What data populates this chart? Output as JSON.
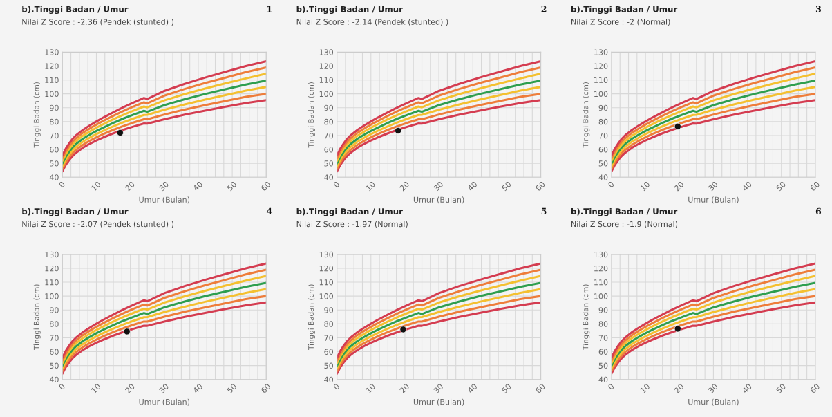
{
  "chart_data": [
    {
      "type": "line",
      "title": "b).Tinggi Badan / Umur",
      "subtitle": "Nilai Z Score : -2.36 (Pendek (stunted) )",
      "annotations": [
        "1"
      ],
      "xlabel": "Umur (Bulan)",
      "ylabel": "Tinggi Badan (cm)",
      "xlim": [
        0,
        60
      ],
      "ylim": [
        40,
        130
      ],
      "xticks": [
        0,
        {
          "value": 2.5,
          "label": null
        },
        {
          "value": 5,
          "label": null
        },
        {
          "value": 7.5,
          "label": null
        },
        10,
        {
          "value": 12.5,
          "label": null
        },
        {
          "value": 15,
          "label": null
        },
        {
          "value": 17.5,
          "label": null
        },
        20,
        {
          "value": 22.5,
          "label": null
        },
        {
          "value": 25,
          "label": null
        },
        {
          "value": 27.5,
          "label": null
        },
        30,
        {
          "value": 32.5,
          "label": null
        },
        {
          "value": 35,
          "label": null
        },
        {
          "value": 37.5,
          "label": null
        },
        40,
        {
          "value": 42.5,
          "label": null
        },
        {
          "value": 45,
          "label": null
        },
        {
          "value": 47.5,
          "label": null
        },
        50,
        {
          "value": 52.5,
          "label": null
        },
        {
          "value": 55,
          "label": null
        },
        {
          "value": 57.5,
          "label": null
        },
        60
      ],
      "yticks": [
        40,
        50,
        60,
        70,
        80,
        90,
        100,
        110,
        120,
        130
      ],
      "grid": true,
      "line_style": "solid",
      "x": [
        0,
        1,
        2,
        3,
        4,
        6,
        8,
        10,
        12,
        15,
        18,
        21,
        24,
        25,
        30,
        36,
        42,
        48,
        54,
        60
      ],
      "series": [
        {
          "color": "#d43c50",
          "values": [
            44.2,
            48.9,
            52.4,
            55.3,
            57.6,
            61.2,
            64.0,
            66.4,
            68.6,
            71.6,
            74.2,
            76.5,
            78.7,
            78.6,
            81.7,
            85.0,
            87.9,
            90.7,
            93.4,
            95.5
          ]
        },
        {
          "color": "#ee7d3a",
          "values": [
            46.1,
            50.8,
            54.4,
            57.3,
            59.7,
            63.3,
            66.2,
            68.7,
            71.0,
            74.1,
            76.9,
            79.4,
            81.7,
            81.7,
            85.1,
            88.7,
            91.9,
            94.9,
            97.8,
            100
          ]
        },
        {
          "color": "#f4c030",
          "values": [
            48.0,
            52.8,
            56.4,
            59.4,
            61.8,
            65.5,
            68.4,
            71.0,
            73.4,
            76.6,
            79.6,
            82.3,
            84.8,
            84.9,
            88.5,
            92.4,
            95.9,
            99.1,
            102.3,
            105
          ]
        },
        {
          "color": "#2e9e4f",
          "values": [
            49.9,
            54.7,
            58.4,
            61.4,
            63.9,
            67.6,
            70.6,
            73.3,
            75.7,
            79.1,
            82.3,
            85.1,
            87.8,
            87.1,
            91.9,
            96.1,
            99.9,
            103.3,
            106.7,
            109.5
          ]
        },
        {
          "color": "#f4c030",
          "values": [
            51.8,
            56.7,
            60.4,
            63.5,
            66.0,
            69.8,
            72.8,
            75.6,
            78.1,
            81.7,
            85.0,
            88.0,
            90.9,
            90.3,
            95.3,
            99.8,
            103.8,
            107.5,
            111.1,
            114.5
          ]
        },
        {
          "color": "#ee7d3a",
          "values": [
            53.7,
            58.6,
            62.4,
            65.5,
            68.0,
            71.9,
            75.0,
            77.9,
            80.5,
            84.2,
            87.7,
            90.9,
            93.9,
            93.2,
            98.7,
            103.5,
            107.8,
            111.7,
            115.6,
            119
          ]
        },
        {
          "color": "#d43c50",
          "values": [
            55.6,
            60.6,
            64.4,
            67.6,
            70.1,
            74.0,
            77.2,
            80.1,
            82.9,
            86.7,
            90.4,
            93.8,
            97.0,
            96.3,
            102.1,
            107.2,
            111.7,
            115.9,
            120.0,
            123.5
          ]
        },
        {
          "type": "scatter",
          "color": "#111111",
          "x": [
            17
          ],
          "values": [
            72
          ]
        }
      ]
    },
    {
      "type": "line",
      "title": "b).Tinggi Badan / Umur",
      "subtitle": "Nilai Z Score : -2.14 (Pendek (stunted) )",
      "annotations": [
        "2"
      ],
      "xlabel": "Umur (Bulan)",
      "ylabel": "Tinggi Badan (cm)",
      "xlim": [
        0,
        60
      ],
      "ylim": [
        40,
        130
      ],
      "xticks": [
        0,
        {
          "value": 2.5,
          "label": null
        },
        {
          "value": 5,
          "label": null
        },
        {
          "value": 7.5,
          "label": null
        },
        10,
        {
          "value": 12.5,
          "label": null
        },
        {
          "value": 15,
          "label": null
        },
        {
          "value": 17.5,
          "label": null
        },
        20,
        {
          "value": 22.5,
          "label": null
        },
        {
          "value": 25,
          "label": null
        },
        {
          "value": 27.5,
          "label": null
        },
        30,
        {
          "value": 32.5,
          "label": null
        },
        {
          "value": 35,
          "label": null
        },
        {
          "value": 37.5,
          "label": null
        },
        40,
        {
          "value": 42.5,
          "label": null
        },
        {
          "value": 45,
          "label": null
        },
        {
          "value": 47.5,
          "label": null
        },
        50,
        {
          "value": 52.5,
          "label": null
        },
        {
          "value": 55,
          "label": null
        },
        {
          "value": 57.5,
          "label": null
        },
        60
      ],
      "yticks": [
        40,
        50,
        60,
        70,
        80,
        90,
        100,
        110,
        120,
        130
      ],
      "grid": true,
      "line_style": "solid",
      "x": [
        0,
        1,
        2,
        3,
        4,
        6,
        8,
        10,
        12,
        15,
        18,
        21,
        24,
        25,
        30,
        36,
        42,
        48,
        54,
        60
      ],
      "series": [
        {
          "color": "#d43c50",
          "values": [
            44.2,
            48.9,
            52.4,
            55.3,
            57.6,
            61.2,
            64.0,
            66.4,
            68.6,
            71.6,
            74.2,
            76.5,
            78.7,
            78.6,
            81.7,
            85.0,
            87.9,
            90.7,
            93.4,
            95.5
          ]
        },
        {
          "color": "#ee7d3a",
          "values": [
            46.1,
            50.8,
            54.4,
            57.3,
            59.7,
            63.3,
            66.2,
            68.7,
            71.0,
            74.1,
            76.9,
            79.4,
            81.7,
            81.7,
            85.1,
            88.7,
            91.9,
            94.9,
            97.8,
            100
          ]
        },
        {
          "color": "#f4c030",
          "values": [
            48.0,
            52.8,
            56.4,
            59.4,
            61.8,
            65.5,
            68.4,
            71.0,
            73.4,
            76.6,
            79.6,
            82.3,
            84.8,
            84.9,
            88.5,
            92.4,
            95.9,
            99.1,
            102.3,
            105
          ]
        },
        {
          "color": "#2e9e4f",
          "values": [
            49.9,
            54.7,
            58.4,
            61.4,
            63.9,
            67.6,
            70.6,
            73.3,
            75.7,
            79.1,
            82.3,
            85.1,
            87.8,
            87.1,
            91.9,
            96.1,
            99.9,
            103.3,
            106.7,
            109.5
          ]
        },
        {
          "color": "#f4c030",
          "values": [
            51.8,
            56.7,
            60.4,
            63.5,
            66.0,
            69.8,
            72.8,
            75.6,
            78.1,
            81.7,
            85.0,
            88.0,
            90.9,
            90.3,
            95.3,
            99.8,
            103.8,
            107.5,
            111.1,
            114.5
          ]
        },
        {
          "color": "#ee7d3a",
          "values": [
            53.7,
            58.6,
            62.4,
            65.5,
            68.0,
            71.9,
            75.0,
            77.9,
            80.5,
            84.2,
            87.7,
            90.9,
            93.9,
            93.2,
            98.7,
            103.5,
            107.8,
            111.7,
            115.6,
            119
          ]
        },
        {
          "color": "#d43c50",
          "values": [
            55.6,
            60.6,
            64.4,
            67.6,
            70.1,
            74.0,
            77.2,
            80.1,
            82.9,
            86.7,
            90.4,
            93.8,
            97.0,
            96.3,
            102.1,
            107.2,
            111.7,
            115.9,
            120.0,
            123.5
          ]
        },
        {
          "type": "scatter",
          "color": "#111111",
          "x": [
            18
          ],
          "values": [
            73.5
          ]
        }
      ]
    },
    {
      "type": "line",
      "title": "b).Tinggi Badan / Umur",
      "subtitle": "Nilai Z Score : -2 (Normal)",
      "annotations": [
        "3"
      ],
      "xlabel": "Umur (Bulan)",
      "ylabel": "Tinggi Badan (cm)",
      "xlim": [
        0,
        60
      ],
      "ylim": [
        40,
        130
      ],
      "xticks": [
        0,
        {
          "value": 2.5,
          "label": null
        },
        {
          "value": 5,
          "label": null
        },
        {
          "value": 7.5,
          "label": null
        },
        10,
        {
          "value": 12.5,
          "label": null
        },
        {
          "value": 15,
          "label": null
        },
        {
          "value": 17.5,
          "label": null
        },
        20,
        {
          "value": 22.5,
          "label": null
        },
        {
          "value": 25,
          "label": null
        },
        {
          "value": 27.5,
          "label": null
        },
        30,
        {
          "value": 32.5,
          "label": null
        },
        {
          "value": 35,
          "label": null
        },
        {
          "value": 37.5,
          "label": null
        },
        40,
        {
          "value": 42.5,
          "label": null
        },
        {
          "value": 45,
          "label": null
        },
        {
          "value": 47.5,
          "label": null
        },
        50,
        {
          "value": 52.5,
          "label": null
        },
        {
          "value": 55,
          "label": null
        },
        {
          "value": 57.5,
          "label": null
        },
        60
      ],
      "yticks": [
        40,
        50,
        60,
        70,
        80,
        90,
        100,
        110,
        120,
        130
      ],
      "grid": true,
      "line_style": "solid",
      "x": [
        0,
        1,
        2,
        3,
        4,
        6,
        8,
        10,
        12,
        15,
        18,
        21,
        24,
        25,
        30,
        36,
        42,
        48,
        54,
        60
      ],
      "series": [
        {
          "color": "#d43c50",
          "values": [
            44.2,
            48.9,
            52.4,
            55.3,
            57.6,
            61.2,
            64.0,
            66.4,
            68.6,
            71.6,
            74.2,
            76.5,
            78.7,
            78.6,
            81.7,
            85.0,
            87.9,
            90.7,
            93.4,
            95.5
          ]
        },
        {
          "color": "#ee7d3a",
          "values": [
            46.1,
            50.8,
            54.4,
            57.3,
            59.7,
            63.3,
            66.2,
            68.7,
            71.0,
            74.1,
            76.9,
            79.4,
            81.7,
            81.7,
            85.1,
            88.7,
            91.9,
            94.9,
            97.8,
            100
          ]
        },
        {
          "color": "#f4c030",
          "values": [
            48.0,
            52.8,
            56.4,
            59.4,
            61.8,
            65.5,
            68.4,
            71.0,
            73.4,
            76.6,
            79.6,
            82.3,
            84.8,
            84.9,
            88.5,
            92.4,
            95.9,
            99.1,
            102.3,
            105
          ]
        },
        {
          "color": "#2e9e4f",
          "values": [
            49.9,
            54.7,
            58.4,
            61.4,
            63.9,
            67.6,
            70.6,
            73.3,
            75.7,
            79.1,
            82.3,
            85.1,
            87.8,
            87.1,
            91.9,
            96.1,
            99.9,
            103.3,
            106.7,
            109.5
          ]
        },
        {
          "color": "#f4c030",
          "values": [
            51.8,
            56.7,
            60.4,
            63.5,
            66.0,
            69.8,
            72.8,
            75.6,
            78.1,
            81.7,
            85.0,
            88.0,
            90.9,
            90.3,
            95.3,
            99.8,
            103.8,
            107.5,
            111.1,
            114.5
          ]
        },
        {
          "color": "#ee7d3a",
          "values": [
            53.7,
            58.6,
            62.4,
            65.5,
            68.0,
            71.9,
            75.0,
            77.9,
            80.5,
            84.2,
            87.7,
            90.9,
            93.9,
            93.2,
            98.7,
            103.5,
            107.8,
            111.7,
            115.6,
            119
          ]
        },
        {
          "color": "#d43c50",
          "values": [
            55.6,
            60.6,
            64.4,
            67.6,
            70.1,
            74.0,
            77.2,
            80.1,
            82.9,
            86.7,
            90.4,
            93.8,
            97.0,
            96.3,
            102.1,
            107.2,
            111.7,
            115.9,
            120.0,
            123.5
          ]
        },
        {
          "type": "scatter",
          "color": "#111111",
          "x": [
            19.5
          ],
          "values": [
            76.5
          ]
        }
      ]
    },
    {
      "type": "line",
      "title": "b).Tinggi Badan / Umur",
      "subtitle": "Nilai Z Score : -2.07 (Pendek (stunted) )",
      "annotations": [
        "4"
      ],
      "xlabel": "Umur (Bulan)",
      "ylabel": "Tinggi Badan (cm)",
      "xlim": [
        0,
        60
      ],
      "ylim": [
        40,
        130
      ],
      "xticks": [
        0,
        {
          "value": 2.5,
          "label": null
        },
        {
          "value": 5,
          "label": null
        },
        {
          "value": 7.5,
          "label": null
        },
        10,
        {
          "value": 12.5,
          "label": null
        },
        {
          "value": 15,
          "label": null
        },
        {
          "value": 17.5,
          "label": null
        },
        20,
        {
          "value": 22.5,
          "label": null
        },
        {
          "value": 25,
          "label": null
        },
        {
          "value": 27.5,
          "label": null
        },
        30,
        {
          "value": 32.5,
          "label": null
        },
        {
          "value": 35,
          "label": null
        },
        {
          "value": 37.5,
          "label": null
        },
        40,
        {
          "value": 42.5,
          "label": null
        },
        {
          "value": 45,
          "label": null
        },
        {
          "value": 47.5,
          "label": null
        },
        50,
        {
          "value": 52.5,
          "label": null
        },
        {
          "value": 55,
          "label": null
        },
        {
          "value": 57.5,
          "label": null
        },
        60
      ],
      "yticks": [
        40,
        50,
        60,
        70,
        80,
        90,
        100,
        110,
        120,
        130
      ],
      "grid": true,
      "line_style": "solid",
      "x": [
        0,
        1,
        2,
        3,
        4,
        6,
        8,
        10,
        12,
        15,
        18,
        21,
        24,
        25,
        30,
        36,
        42,
        48,
        54,
        60
      ],
      "series": [
        {
          "color": "#d43c50",
          "values": [
            44.2,
            48.9,
            52.4,
            55.3,
            57.6,
            61.2,
            64.0,
            66.4,
            68.6,
            71.6,
            74.2,
            76.5,
            78.7,
            78.6,
            81.7,
            85.0,
            87.9,
            90.7,
            93.4,
            95.5
          ]
        },
        {
          "color": "#ee7d3a",
          "values": [
            46.1,
            50.8,
            54.4,
            57.3,
            59.7,
            63.3,
            66.2,
            68.7,
            71.0,
            74.1,
            76.9,
            79.4,
            81.7,
            81.7,
            85.1,
            88.7,
            91.9,
            94.9,
            97.8,
            100
          ]
        },
        {
          "color": "#f4c030",
          "values": [
            48.0,
            52.8,
            56.4,
            59.4,
            61.8,
            65.5,
            68.4,
            71.0,
            73.4,
            76.6,
            79.6,
            82.3,
            84.8,
            84.9,
            88.5,
            92.4,
            95.9,
            99.1,
            102.3,
            105
          ]
        },
        {
          "color": "#2e9e4f",
          "values": [
            49.9,
            54.7,
            58.4,
            61.4,
            63.9,
            67.6,
            70.6,
            73.3,
            75.7,
            79.1,
            82.3,
            85.1,
            87.8,
            87.1,
            91.9,
            96.1,
            99.9,
            103.3,
            106.7,
            109.5
          ]
        },
        {
          "color": "#f4c030",
          "values": [
            51.8,
            56.7,
            60.4,
            63.5,
            66.0,
            69.8,
            72.8,
            75.6,
            78.1,
            81.7,
            85.0,
            88.0,
            90.9,
            90.3,
            95.3,
            99.8,
            103.8,
            107.5,
            111.1,
            114.5
          ]
        },
        {
          "color": "#ee7d3a",
          "values": [
            53.7,
            58.6,
            62.4,
            65.5,
            68.0,
            71.9,
            75.0,
            77.9,
            80.5,
            84.2,
            87.7,
            90.9,
            93.9,
            93.2,
            98.7,
            103.5,
            107.8,
            111.7,
            115.6,
            119
          ]
        },
        {
          "color": "#d43c50",
          "values": [
            55.6,
            60.6,
            64.4,
            67.6,
            70.1,
            74.0,
            77.2,
            80.1,
            82.9,
            86.7,
            90.4,
            93.8,
            97.0,
            96.3,
            102.1,
            107.2,
            111.7,
            115.9,
            120.0,
            123.5
          ]
        },
        {
          "type": "scatter",
          "color": "#111111",
          "x": [
            19
          ],
          "values": [
            74.5
          ]
        }
      ]
    },
    {
      "type": "line",
      "title": "b).Tinggi Badan / Umur",
      "subtitle": "Nilai Z Score : -1.97 (Normal)",
      "annotations": [
        "5"
      ],
      "xlabel": "Umur (Bulan)",
      "ylabel": "Tinggi Badan (cm)",
      "xlim": [
        0,
        60
      ],
      "ylim": [
        40,
        130
      ],
      "xticks": [
        0,
        {
          "value": 2.5,
          "label": null
        },
        {
          "value": 5,
          "label": null
        },
        {
          "value": 7.5,
          "label": null
        },
        10,
        {
          "value": 12.5,
          "label": null
        },
        {
          "value": 15,
          "label": null
        },
        {
          "value": 17.5,
          "label": null
        },
        20,
        {
          "value": 22.5,
          "label": null
        },
        {
          "value": 25,
          "label": null
        },
        {
          "value": 27.5,
          "label": null
        },
        30,
        {
          "value": 32.5,
          "label": null
        },
        {
          "value": 35,
          "label": null
        },
        {
          "value": 37.5,
          "label": null
        },
        40,
        {
          "value": 42.5,
          "label": null
        },
        {
          "value": 45,
          "label": null
        },
        {
          "value": 47.5,
          "label": null
        },
        50,
        {
          "value": 52.5,
          "label": null
        },
        {
          "value": 55,
          "label": null
        },
        {
          "value": 57.5,
          "label": null
        },
        60
      ],
      "yticks": [
        40,
        50,
        60,
        70,
        80,
        90,
        100,
        110,
        120,
        130
      ],
      "grid": true,
      "line_style": "solid",
      "x": [
        0,
        1,
        2,
        3,
        4,
        6,
        8,
        10,
        12,
        15,
        18,
        21,
        24,
        25,
        30,
        36,
        42,
        48,
        54,
        60
      ],
      "series": [
        {
          "color": "#d43c50",
          "values": [
            44.2,
            48.9,
            52.4,
            55.3,
            57.6,
            61.2,
            64.0,
            66.4,
            68.6,
            71.6,
            74.2,
            76.5,
            78.7,
            78.6,
            81.7,
            85.0,
            87.9,
            90.7,
            93.4,
            95.5
          ]
        },
        {
          "color": "#ee7d3a",
          "values": [
            46.1,
            50.8,
            54.4,
            57.3,
            59.7,
            63.3,
            66.2,
            68.7,
            71.0,
            74.1,
            76.9,
            79.4,
            81.7,
            81.7,
            85.1,
            88.7,
            91.9,
            94.9,
            97.8,
            100
          ]
        },
        {
          "color": "#f4c030",
          "values": [
            48.0,
            52.8,
            56.4,
            59.4,
            61.8,
            65.5,
            68.4,
            71.0,
            73.4,
            76.6,
            79.6,
            82.3,
            84.8,
            84.9,
            88.5,
            92.4,
            95.9,
            99.1,
            102.3,
            105
          ]
        },
        {
          "color": "#2e9e4f",
          "values": [
            49.9,
            54.7,
            58.4,
            61.4,
            63.9,
            67.6,
            70.6,
            73.3,
            75.7,
            79.1,
            82.3,
            85.1,
            87.8,
            87.1,
            91.9,
            96.1,
            99.9,
            103.3,
            106.7,
            109.5
          ]
        },
        {
          "color": "#f4c030",
          "values": [
            51.8,
            56.7,
            60.4,
            63.5,
            66.0,
            69.8,
            72.8,
            75.6,
            78.1,
            81.7,
            85.0,
            88.0,
            90.9,
            90.3,
            95.3,
            99.8,
            103.8,
            107.5,
            111.1,
            114.5
          ]
        },
        {
          "color": "#ee7d3a",
          "values": [
            53.7,
            58.6,
            62.4,
            65.5,
            68.0,
            71.9,
            75.0,
            77.9,
            80.5,
            84.2,
            87.7,
            90.9,
            93.9,
            93.2,
            98.7,
            103.5,
            107.8,
            111.7,
            115.6,
            119
          ]
        },
        {
          "color": "#d43c50",
          "values": [
            55.6,
            60.6,
            64.4,
            67.6,
            70.1,
            74.0,
            77.2,
            80.1,
            82.9,
            86.7,
            90.4,
            93.8,
            97.0,
            96.3,
            102.1,
            107.2,
            111.7,
            115.9,
            120.0,
            123.5
          ]
        },
        {
          "type": "scatter",
          "color": "#111111",
          "x": [
            19.5
          ],
          "values": [
            76
          ]
        }
      ]
    },
    {
      "type": "line",
      "title": "b).Tinggi Badan / Umur",
      "subtitle": "Nilai Z Score : -1.9 (Normal)",
      "annotations": [
        "6"
      ],
      "xlabel": "Umur (Bulan)",
      "ylabel": "Tinggi Badan (cm)",
      "xlim": [
        0,
        60
      ],
      "ylim": [
        40,
        130
      ],
      "xticks": [
        0,
        {
          "value": 2.5,
          "label": null
        },
        {
          "value": 5,
          "label": null
        },
        {
          "value": 7.5,
          "label": null
        },
        10,
        {
          "value": 12.5,
          "label": null
        },
        {
          "value": 15,
          "label": null
        },
        {
          "value": 17.5,
          "label": null
        },
        20,
        {
          "value": 22.5,
          "label": null
        },
        {
          "value": 25,
          "label": null
        },
        {
          "value": 27.5,
          "label": null
        },
        30,
        {
          "value": 32.5,
          "label": null
        },
        {
          "value": 35,
          "label": null
        },
        {
          "value": 37.5,
          "label": null
        },
        40,
        {
          "value": 42.5,
          "label": null
        },
        {
          "value": 45,
          "label": null
        },
        {
          "value": 47.5,
          "label": null
        },
        50,
        {
          "value": 52.5,
          "label": null
        },
        {
          "value": 55,
          "label": null
        },
        {
          "value": 57.5,
          "label": null
        },
        60
      ],
      "yticks": [
        40,
        50,
        60,
        70,
        80,
        90,
        100,
        110,
        120,
        130
      ],
      "grid": true,
      "line_style": "solid",
      "x": [
        0,
        1,
        2,
        3,
        4,
        6,
        8,
        10,
        12,
        15,
        18,
        21,
        24,
        25,
        30,
        36,
        42,
        48,
        54,
        60
      ],
      "series": [
        {
          "color": "#d43c50",
          "values": [
            44.2,
            48.9,
            52.4,
            55.3,
            57.6,
            61.2,
            64.0,
            66.4,
            68.6,
            71.6,
            74.2,
            76.5,
            78.7,
            78.6,
            81.7,
            85.0,
            87.9,
            90.7,
            93.4,
            95.5
          ]
        },
        {
          "color": "#ee7d3a",
          "values": [
            46.1,
            50.8,
            54.4,
            57.3,
            59.7,
            63.3,
            66.2,
            68.7,
            71.0,
            74.1,
            76.9,
            79.4,
            81.7,
            81.7,
            85.1,
            88.7,
            91.9,
            94.9,
            97.8,
            100
          ]
        },
        {
          "color": "#f4c030",
          "values": [
            48.0,
            52.8,
            56.4,
            59.4,
            61.8,
            65.5,
            68.4,
            71.0,
            73.4,
            76.6,
            79.6,
            82.3,
            84.8,
            84.9,
            88.5,
            92.4,
            95.9,
            99.1,
            102.3,
            105
          ]
        },
        {
          "color": "#2e9e4f",
          "values": [
            49.9,
            54.7,
            58.4,
            61.4,
            63.9,
            67.6,
            70.6,
            73.3,
            75.7,
            79.1,
            82.3,
            85.1,
            87.8,
            87.1,
            91.9,
            96.1,
            99.9,
            103.3,
            106.7,
            109.5
          ]
        },
        {
          "color": "#f4c030",
          "values": [
            51.8,
            56.7,
            60.4,
            63.5,
            66.0,
            69.8,
            72.8,
            75.6,
            78.1,
            81.7,
            85.0,
            88.0,
            90.9,
            90.3,
            95.3,
            99.8,
            103.8,
            107.5,
            111.1,
            114.5
          ]
        },
        {
          "color": "#ee7d3a",
          "values": [
            53.7,
            58.6,
            62.4,
            65.5,
            68.0,
            71.9,
            75.0,
            77.9,
            80.5,
            84.2,
            87.7,
            90.9,
            93.9,
            93.2,
            98.7,
            103.5,
            107.8,
            111.7,
            115.6,
            119
          ]
        },
        {
          "color": "#d43c50",
          "values": [
            55.6,
            60.6,
            64.4,
            67.6,
            70.1,
            74.0,
            77.2,
            80.1,
            82.9,
            86.7,
            90.4,
            93.8,
            97.0,
            96.3,
            102.1,
            107.2,
            111.7,
            115.9,
            120.0,
            123.5
          ]
        },
        {
          "type": "scatter",
          "color": "#111111",
          "x": [
            19.5
          ],
          "values": [
            76.5
          ]
        }
      ]
    }
  ]
}
